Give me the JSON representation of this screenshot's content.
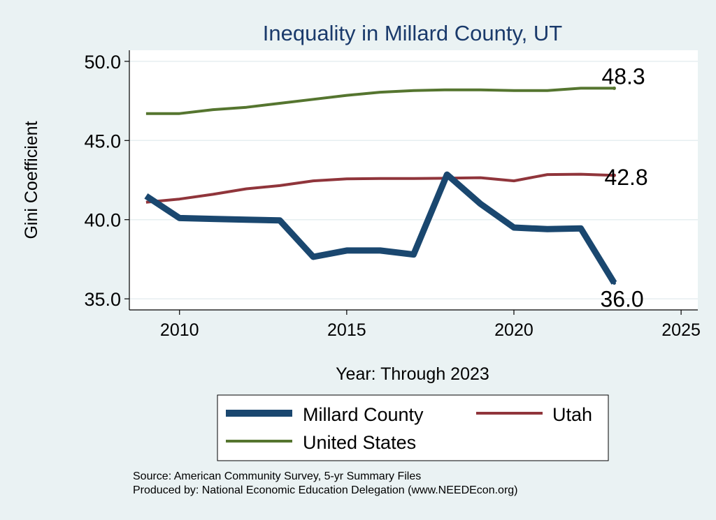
{
  "chart_data": {
    "type": "line",
    "title": "Inequality in Millard County, UT",
    "xlabel": "Year: Through 2023",
    "ylabel": "Gini Coefficient",
    "xlim": [
      2008.5,
      2025.5
    ],
    "ylim": [
      34.3,
      50.7
    ],
    "x_ticks": [
      2010,
      2015,
      2020,
      2025
    ],
    "y_ticks": [
      35.0,
      40.0,
      45.0,
      50.0
    ],
    "y_tick_labels": [
      "35.0",
      "40.0",
      "45.0",
      "50.0"
    ],
    "grid": true,
    "x": [
      2009,
      2010,
      2011,
      2012,
      2013,
      2014,
      2015,
      2016,
      2017,
      2018,
      2019,
      2020,
      2021,
      2022,
      2023
    ],
    "series": [
      {
        "name": "Millard County",
        "color": "#1a476f",
        "values": [
          41.5,
          40.1,
          40.05,
          40.0,
          39.95,
          37.65,
          38.05,
          38.05,
          37.8,
          42.85,
          41.0,
          39.5,
          39.4,
          39.45,
          36.0
        ],
        "end_label": "36.0"
      },
      {
        "name": "Utah",
        "color": "#90353b",
        "values": [
          41.1,
          41.3,
          41.6,
          41.95,
          42.15,
          42.45,
          42.58,
          42.6,
          42.6,
          42.62,
          42.65,
          42.45,
          42.85,
          42.87,
          42.8
        ],
        "end_label": "42.8"
      },
      {
        "name": "United States",
        "color": "#55752f",
        "values": [
          46.7,
          46.7,
          46.95,
          47.1,
          47.35,
          47.6,
          47.85,
          48.05,
          48.15,
          48.2,
          48.2,
          48.15,
          48.15,
          48.3,
          48.3
        ],
        "end_label": "48.3"
      }
    ],
    "legend": {
      "position": "bottom",
      "items": [
        {
          "label": "Millard County",
          "color": "#1a476f"
        },
        {
          "label": "Utah",
          "color": "#90353b"
        },
        {
          "label": "United States",
          "color": "#55752f"
        }
      ]
    },
    "notes": [
      "Source: American Community Survey, 5-yr Summary Files",
      "Produced by: National Economic Education Delegation (www.NEEDEcon.org)"
    ]
  }
}
